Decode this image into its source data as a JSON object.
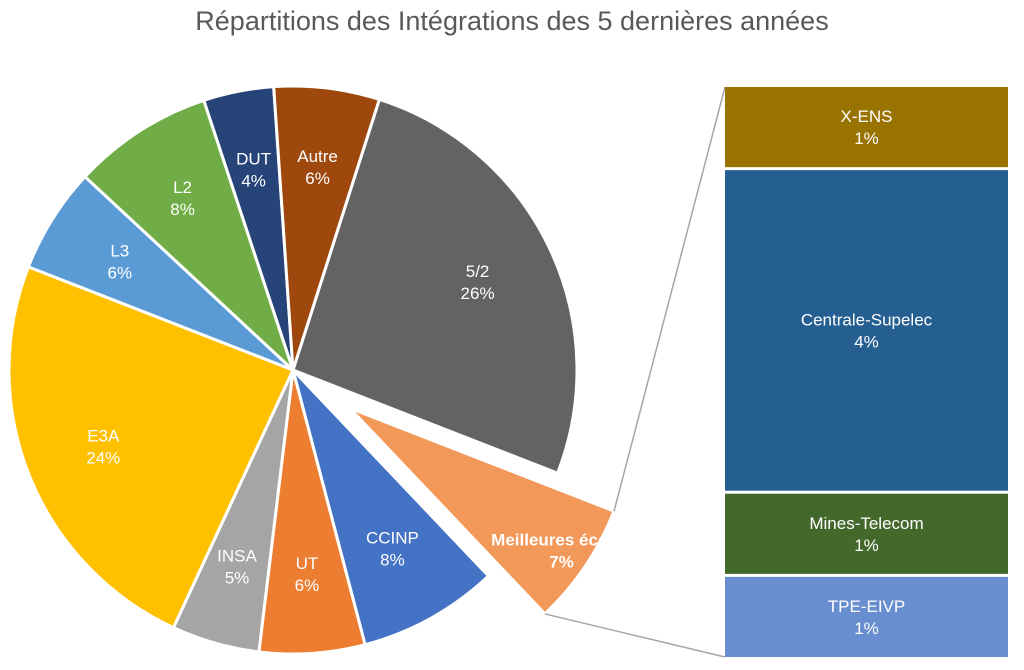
{
  "chart_data": {
    "type": "pie",
    "subtype": "bar-of-pie",
    "title": "Répartitions des Intégrations des 5 dernières années",
    "slices": [
      {
        "label": "5/2",
        "value": 26,
        "display": "26%",
        "color": "#636363"
      },
      {
        "label": "Meilleures écoles",
        "value": 7,
        "display": "7%",
        "color": "#F29859",
        "exploded": true,
        "bold": true
      },
      {
        "label": "CCINP",
        "value": 8,
        "display": "8%",
        "color": "#4472C4"
      },
      {
        "label": "UT",
        "value": 6,
        "display": "6%",
        "color": "#ED7D31"
      },
      {
        "label": "INSA",
        "value": 5,
        "display": "5%",
        "color": "#A5A5A5"
      },
      {
        "label": "E3A",
        "value": 24,
        "display": "24%",
        "color": "#FFC000"
      },
      {
        "label": "L3",
        "value": 6,
        "display": "6%",
        "color": "#5B9BD5"
      },
      {
        "label": "L2",
        "value": 8,
        "display": "8%",
        "color": "#70AD47"
      },
      {
        "label": "DUT",
        "value": 4,
        "display": "4%",
        "color": "#264478"
      },
      {
        "label": "Autre",
        "value": 6,
        "display": "6%",
        "color": "#9E480E"
      }
    ],
    "secondary_bar": {
      "parent": "Meilleures écoles",
      "segments": [
        {
          "label": "X-ENS",
          "value": 1,
          "display": "1%",
          "color": "#997300"
        },
        {
          "label": "Centrale-Supelec",
          "value": 4,
          "display": "4%",
          "color": "#255E91"
        },
        {
          "label": "Mines-Telecom",
          "value": 1,
          "display": "1%",
          "color": "#43682B"
        },
        {
          "label": "TPE-EIVP",
          "value": 1,
          "display": "1%",
          "color": "#698ED0"
        }
      ]
    }
  }
}
